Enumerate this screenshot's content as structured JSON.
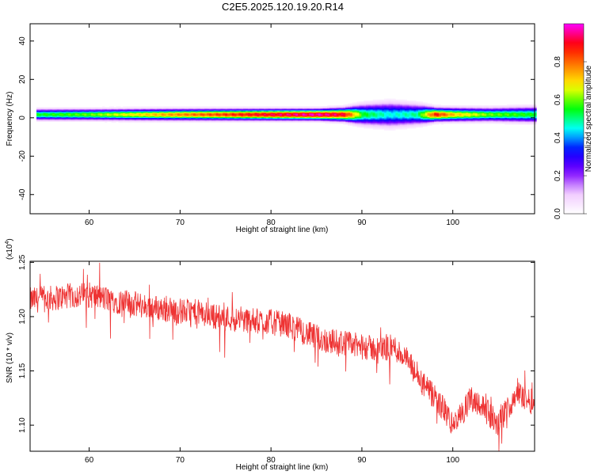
{
  "title": "C2E5.2025.120.19.20.R14",
  "colorbar": {
    "label": "Normalized spectral amplitude",
    "ticks": [
      "0.0",
      "0.2",
      "0.4",
      "0.6",
      "0.8"
    ],
    "tick_values": [
      0.0,
      0.2,
      0.4,
      0.6,
      0.8
    ],
    "range": [
      0,
      1
    ],
    "colormap": [
      "#ffffff",
      "#f0c8ff",
      "#7a00ff",
      "#0000ff",
      "#00ffff",
      "#00ff00",
      "#ffff00",
      "#ff8000",
      "#ff0000",
      "#ff00ff"
    ]
  },
  "chart_data": [
    {
      "type": "heatmap",
      "xlabel": "Height of straight line (km)",
      "ylabel": "Frequency (Hz)",
      "xlim": [
        53.5,
        109
      ],
      "ylim": [
        -50,
        49
      ],
      "x_ticks": [
        60,
        70,
        80,
        90,
        100
      ],
      "x_tick_labels": [
        "60",
        "70",
        "80",
        "90",
        "100"
      ],
      "y_ticks": [
        -40,
        -20,
        0,
        20,
        40
      ],
      "y_tick_labels": [
        "-40",
        "-20",
        "0",
        "20",
        "40"
      ],
      "band_center_hz": 1.5,
      "band_profile": {
        "x_km": [
          54.2,
          60,
          70,
          80,
          85,
          88,
          90,
          93,
          96,
          98,
          100,
          104,
          109
        ],
        "amplitude": [
          0.55,
          0.6,
          0.78,
          0.92,
          0.98,
          0.9,
          0.55,
          0.45,
          0.5,
          0.88,
          0.72,
          0.6,
          0.55
        ],
        "halfwidth_hz": [
          2.5,
          2.5,
          2.5,
          2.5,
          2.5,
          3.0,
          4.5,
          5.5,
          4.5,
          3.0,
          3.0,
          3.0,
          3.5
        ]
      }
    },
    {
      "type": "line",
      "xlabel": "Height of straight line (km)",
      "ylabel": "SNR (10 * v/v)",
      "y_multiplier": "(x10",
      "y_multiplier_exp": "4",
      "y_multiplier_close": ")",
      "xlim": [
        53.5,
        109
      ],
      "ylim": [
        1.076,
        1.251
      ],
      "x_ticks": [
        60,
        70,
        80,
        90,
        100
      ],
      "x_tick_labels": [
        "60",
        "70",
        "80",
        "90",
        "100"
      ],
      "y_ticks": [
        1.1,
        1.15,
        1.2,
        1.25
      ],
      "y_tick_labels": [
        "1.10",
        "1.15",
        "1.20",
        "1.25"
      ],
      "color": "#ee3333",
      "series": [
        {
          "x": [
            53.5,
            56,
            58,
            60,
            62,
            64,
            66,
            68,
            70,
            72,
            74,
            76,
            78,
            80,
            82,
            84,
            86,
            88,
            90,
            92,
            93.5,
            95,
            96,
            97,
            98,
            99,
            100,
            101,
            102,
            103,
            104,
            105,
            106,
            107,
            108,
            109
          ],
          "values": [
            1.215,
            1.217,
            1.219,
            1.22,
            1.216,
            1.213,
            1.21,
            1.207,
            1.205,
            1.204,
            1.2,
            1.198,
            1.196,
            1.195,
            1.192,
            1.184,
            1.178,
            1.176,
            1.172,
            1.17,
            1.172,
            1.16,
            1.145,
            1.135,
            1.125,
            1.115,
            1.1,
            1.11,
            1.125,
            1.12,
            1.11,
            1.1,
            1.115,
            1.13,
            1.125,
            1.12
          ],
          "noise_amplitude": 0.012
        }
      ]
    }
  ]
}
